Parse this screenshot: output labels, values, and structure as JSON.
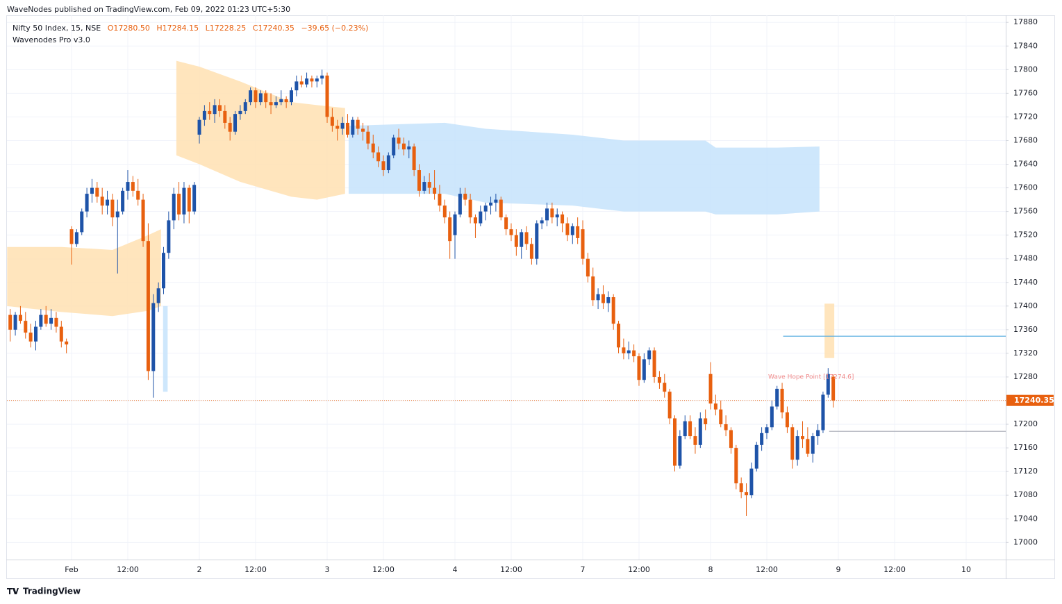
{
  "header": {
    "publisher": "WaveNodes published on TradingView.com, Feb 09, 2022 01:23 UTC+5:30",
    "symbol": "Nifty 50 Index, 15, NSE",
    "open": "O17280.50",
    "high": "H17284.15",
    "low": "L17228.25",
    "close": "C17240.35",
    "change": "−39.65 (−0.23%)",
    "indicator": "Wavenodes Pro v3.0"
  },
  "footer": "TradingView",
  "chart_data": {
    "type": "candlestick",
    "up_color": "#1e53a8",
    "down_color": "#e8600f",
    "grid": true,
    "ylim": [
      16971,
      17892
    ],
    "yticks": [
      17000,
      17040,
      17080,
      17120,
      17160,
      17200,
      17240,
      17280,
      17320,
      17360,
      17400,
      17440,
      17480,
      17520,
      17560,
      17600,
      17640,
      17680,
      17720,
      17760,
      17800,
      17840,
      17880
    ],
    "categories": [
      null,
      null,
      null,
      null,
      null,
      null,
      null,
      null,
      null,
      null,
      null,
      null,
      "Feb",
      null,
      null,
      null,
      null,
      null,
      null,
      null,
      null,
      null,
      null,
      "12:00",
      null,
      null,
      null,
      null,
      null,
      null,
      null,
      null,
      null,
      null,
      null,
      null,
      null,
      "2",
      null,
      null,
      null,
      null,
      null,
      null,
      null,
      null,
      null,
      null,
      "12:00",
      null,
      null,
      null,
      null,
      null,
      null,
      null,
      null,
      null,
      null,
      null,
      null,
      null,
      "3",
      null,
      null,
      null,
      null,
      null,
      null,
      null,
      null,
      null,
      null,
      "12:00",
      null,
      null,
      null,
      null,
      null,
      null,
      null,
      null,
      null,
      null,
      null,
      null,
      null,
      "4",
      null,
      null,
      null,
      null,
      null,
      null,
      null,
      null,
      null,
      null,
      "12:00",
      null,
      null,
      null,
      null,
      null,
      null,
      null,
      null,
      null,
      null,
      null,
      null,
      null,
      "7",
      null,
      null,
      null,
      null,
      null,
      null,
      null,
      null,
      null,
      null,
      "12:00",
      null,
      null,
      null,
      null,
      null,
      null,
      null,
      null,
      null,
      null,
      null,
      null,
      null,
      "8",
      null,
      null,
      null,
      null,
      null,
      null,
      null,
      null,
      null,
      null,
      "12:00",
      null,
      null,
      null,
      null,
      null,
      null,
      null,
      null,
      null,
      null,
      null,
      null,
      null,
      "9",
      null,
      null,
      null,
      null,
      null,
      null,
      null,
      null,
      null,
      null,
      "12:00",
      null,
      null,
      null,
      null,
      null,
      null,
      null,
      null,
      null,
      null,
      null,
      null,
      null,
      "10",
      null,
      null,
      null,
      null,
      null,
      null,
      null
    ],
    "ohlc": [
      [
        17385,
        17395,
        17340,
        17360
      ],
      [
        17360,
        17390,
        17350,
        17385
      ],
      [
        17385,
        17400,
        17370,
        17375
      ],
      [
        17375,
        17390,
        17345,
        17355
      ],
      [
        17355,
        17370,
        17330,
        17340
      ],
      [
        17340,
        17375,
        17325,
        17365
      ],
      [
        17365,
        17395,
        17360,
        17385
      ],
      [
        17385,
        17400,
        17365,
        17370
      ],
      [
        17370,
        17395,
        17360,
        17380
      ],
      [
        17380,
        17390,
        17355,
        17365
      ],
      [
        17365,
        17375,
        17330,
        17340
      ],
      [
        17340,
        17345,
        17320,
        17335
      ],
      [
        17530,
        17535,
        17470,
        17505
      ],
      [
        17505,
        17530,
        17500,
        17525
      ],
      [
        17525,
        17565,
        17520,
        17560
      ],
      [
        17560,
        17600,
        17550,
        17590
      ],
      [
        17590,
        17615,
        17575,
        17600
      ],
      [
        17600,
        17610,
        17575,
        17585
      ],
      [
        17585,
        17600,
        17555,
        17570
      ],
      [
        17570,
        17595,
        17555,
        17580
      ],
      [
        17580,
        17590,
        17535,
        17550
      ],
      [
        17550,
        17580,
        17455,
        17560
      ],
      [
        17560,
        17600,
        17555,
        17595
      ],
      [
        17595,
        17630,
        17580,
        17610
      ],
      [
        17610,
        17620,
        17585,
        17595
      ],
      [
        17595,
        17615,
        17570,
        17580
      ],
      [
        17580,
        17590,
        17500,
        17510
      ],
      [
        17510,
        17540,
        17275,
        17290
      ],
      [
        17290,
        17420,
        17245,
        17405
      ],
      [
        17405,
        17440,
        17390,
        17430
      ],
      [
        17430,
        17500,
        17420,
        17490
      ],
      [
        17490,
        17560,
        17480,
        17545
      ],
      [
        17545,
        17600,
        17530,
        17590
      ],
      [
        17590,
        17610,
        17545,
        17555
      ],
      [
        17555,
        17610,
        17540,
        17600
      ],
      [
        17600,
        17605,
        17540,
        17560
      ],
      [
        17560,
        17610,
        17555,
        17605
      ],
      [
        17690,
        17720,
        17675,
        17715
      ],
      [
        17715,
        17740,
        17705,
        17730
      ],
      [
        17730,
        17745,
        17715,
        17725
      ],
      [
        17725,
        17750,
        17710,
        17740
      ],
      [
        17740,
        17750,
        17720,
        17730
      ],
      [
        17730,
        17740,
        17700,
        17710
      ],
      [
        17710,
        17720,
        17680,
        17695
      ],
      [
        17695,
        17730,
        17690,
        17725
      ],
      [
        17725,
        17740,
        17715,
        17730
      ],
      [
        17730,
        17750,
        17725,
        17745
      ],
      [
        17745,
        17770,
        17740,
        17765
      ],
      [
        17765,
        17770,
        17735,
        17745
      ],
      [
        17745,
        17765,
        17740,
        17760
      ],
      [
        17760,
        17765,
        17735,
        17745
      ],
      [
        17745,
        17760,
        17725,
        17740
      ],
      [
        17740,
        17755,
        17735,
        17745
      ],
      [
        17745,
        17765,
        17740,
        17750
      ],
      [
        17750,
        17755,
        17735,
        17745
      ],
      [
        17745,
        17770,
        17740,
        17765
      ],
      [
        17765,
        17790,
        17755,
        17780
      ],
      [
        17780,
        17790,
        17770,
        17775
      ],
      [
        17775,
        17795,
        17770,
        17785
      ],
      [
        17785,
        17790,
        17770,
        17780
      ],
      [
        17780,
        17790,
        17770,
        17785
      ],
      [
        17785,
        17800,
        17775,
        17790
      ],
      [
        17790,
        17795,
        17710,
        17720
      ],
      [
        17720,
        17735,
        17695,
        17705
      ],
      [
        17705,
        17715,
        17680,
        17700
      ],
      [
        17700,
        17720,
        17690,
        17710
      ],
      [
        17710,
        17725,
        17685,
        17690
      ],
      [
        17690,
        17720,
        17685,
        17715
      ],
      [
        17715,
        17720,
        17690,
        17700
      ],
      [
        17700,
        17710,
        17680,
        17695
      ],
      [
        17695,
        17705,
        17665,
        17675
      ],
      [
        17675,
        17690,
        17650,
        17660
      ],
      [
        17660,
        17670,
        17635,
        17645
      ],
      [
        17645,
        17655,
        17620,
        17630
      ],
      [
        17630,
        17660,
        17625,
        17655
      ],
      [
        17655,
        17690,
        17650,
        17685
      ],
      [
        17685,
        17700,
        17665,
        17675
      ],
      [
        17675,
        17685,
        17655,
        17665
      ],
      [
        17665,
        17680,
        17650,
        17670
      ],
      [
        17670,
        17675,
        17620,
        17630
      ],
      [
        17630,
        17640,
        17585,
        17595
      ],
      [
        17595,
        17620,
        17590,
        17610
      ],
      [
        17610,
        17625,
        17590,
        17600
      ],
      [
        17600,
        17630,
        17580,
        17590
      ],
      [
        17590,
        17605,
        17560,
        17570
      ],
      [
        17570,
        17580,
        17540,
        17550
      ],
      [
        17550,
        17560,
        17480,
        17510
      ],
      [
        17520,
        17560,
        17480,
        17555
      ],
      [
        17555,
        17600,
        17550,
        17590
      ],
      [
        17590,
        17600,
        17570,
        17580
      ],
      [
        17580,
        17590,
        17540,
        17550
      ],
      [
        17550,
        17555,
        17515,
        17540
      ],
      [
        17540,
        17570,
        17535,
        17560
      ],
      [
        17560,
        17575,
        17545,
        17570
      ],
      [
        17570,
        17585,
        17555,
        17575
      ],
      [
        17575,
        17590,
        17560,
        17580
      ],
      [
        17580,
        17585,
        17545,
        17550
      ],
      [
        17550,
        17555,
        17520,
        17530
      ],
      [
        17530,
        17540,
        17510,
        17520
      ],
      [
        17520,
        17530,
        17485,
        17500
      ],
      [
        17500,
        17530,
        17480,
        17525
      ],
      [
        17525,
        17535,
        17495,
        17505
      ],
      [
        17505,
        17515,
        17470,
        17480
      ],
      [
        17480,
        17545,
        17470,
        17540
      ],
      [
        17540,
        17550,
        17530,
        17545
      ],
      [
        17545,
        17575,
        17535,
        17565
      ],
      [
        17565,
        17575,
        17540,
        17550
      ],
      [
        17550,
        17565,
        17535,
        17555
      ],
      [
        17555,
        17560,
        17525,
        17540
      ],
      [
        17540,
        17550,
        17510,
        17520
      ],
      [
        17520,
        17540,
        17505,
        17535
      ],
      [
        17535,
        17550,
        17505,
        17515
      ],
      [
        17530,
        17545,
        17470,
        17480
      ],
      [
        17480,
        17490,
        17440,
        17450
      ],
      [
        17450,
        17465,
        17400,
        17410
      ],
      [
        17410,
        17430,
        17395,
        17420
      ],
      [
        17420,
        17435,
        17395,
        17405
      ],
      [
        17405,
        17425,
        17390,
        17415
      ],
      [
        17415,
        17420,
        17360,
        17370
      ],
      [
        17370,
        17375,
        17320,
        17330
      ],
      [
        17330,
        17345,
        17310,
        17320
      ],
      [
        17320,
        17340,
        17310,
        17325
      ],
      [
        17325,
        17335,
        17305,
        17315
      ],
      [
        17315,
        17320,
        17265,
        17275
      ],
      [
        17275,
        17320,
        17270,
        17310
      ],
      [
        17310,
        17330,
        17300,
        17325
      ],
      [
        17325,
        17330,
        17270,
        17280
      ],
      [
        17280,
        17290,
        17260,
        17270
      ],
      [
        17270,
        17285,
        17245,
        17255
      ],
      [
        17255,
        17260,
        17200,
        17210
      ],
      [
        17210,
        17215,
        17120,
        17130
      ],
      [
        17130,
        17190,
        17125,
        17180
      ],
      [
        17180,
        17215,
        17175,
        17205
      ],
      [
        17205,
        17215,
        17175,
        17180
      ],
      [
        17180,
        17195,
        17150,
        17165
      ],
      [
        17165,
        17220,
        17160,
        17210
      ],
      [
        17210,
        17225,
        17190,
        17200
      ],
      [
        17285,
        17305,
        17225,
        17235
      ],
      [
        17235,
        17250,
        17215,
        17225
      ],
      [
        17225,
        17240,
        17195,
        17200
      ],
      [
        17200,
        17215,
        17180,
        17190
      ],
      [
        17190,
        17195,
        17150,
        17160
      ],
      [
        17160,
        17165,
        17090,
        17100
      ],
      [
        17100,
        17110,
        17075,
        17085
      ],
      [
        17085,
        17100,
        17045,
        17080
      ],
      [
        17080,
        17135,
        17075,
        17125
      ],
      [
        17125,
        17170,
        17120,
        17165
      ],
      [
        17165,
        17195,
        17155,
        17185
      ],
      [
        17185,
        17200,
        17175,
        17195
      ],
      [
        17195,
        17240,
        17190,
        17230
      ],
      [
        17230,
        17265,
        17225,
        17260
      ],
      [
        17260,
        17270,
        17210,
        17220
      ],
      [
        17220,
        17230,
        17185,
        17195
      ],
      [
        17195,
        17200,
        17125,
        17140
      ],
      [
        17140,
        17190,
        17130,
        17180
      ],
      [
        17180,
        17205,
        17160,
        17175
      ],
      [
        17175,
        17195,
        17145,
        17150
      ],
      [
        17150,
        17185,
        17135,
        17180
      ],
      [
        17180,
        17200,
        17165,
        17190
      ],
      [
        17190,
        17255,
        17185,
        17250
      ],
      [
        17250,
        17295,
        17245,
        17285
      ],
      [
        17280.5,
        17284.15,
        17228.25,
        17240.35
      ],
      null,
      null,
      null,
      null,
      null,
      null,
      null,
      null,
      null,
      null,
      null,
      null,
      null,
      null,
      null,
      null,
      null,
      null,
      null,
      null,
      null,
      null,
      null,
      null,
      null,
      null,
      null,
      null,
      null,
      null,
      null,
      null,
      null
    ],
    "zones": [
      {
        "color": "#ffe0b2",
        "points": [
          [
            -0.6,
            17500,
            17400
          ],
          [
            10,
            17500,
            17390
          ],
          [
            20,
            17495,
            17383
          ],
          [
            27,
            17520,
            17392
          ],
          [
            29.5,
            17530,
            17400
          ]
        ]
      },
      {
        "color": "#ffe0b2",
        "points": [
          [
            32.5,
            17815,
            17655
          ],
          [
            37,
            17805,
            17640
          ],
          [
            45,
            17780,
            17610
          ],
          [
            55,
            17745,
            17585
          ],
          [
            60,
            17740,
            17580
          ],
          [
            65.5,
            17735,
            17590
          ]
        ]
      },
      {
        "color": "#c5e3fb",
        "points": [
          [
            66.2,
            17705,
            17590
          ],
          [
            85,
            17710,
            17590
          ],
          [
            93,
            17700,
            17575
          ],
          [
            110,
            17690,
            17570
          ],
          [
            120,
            17680,
            17560
          ],
          [
            136,
            17680,
            17560
          ],
          [
            138,
            17668,
            17555
          ],
          [
            150,
            17668,
            17555
          ],
          [
            158.3,
            17670,
            17560
          ]
        ]
      },
      {
        "color": "#c5e3fb",
        "points": [
          [
            29.9,
            17400,
            17255
          ],
          [
            30.8,
            17400,
            17255
          ]
        ]
      },
      {
        "color": "#ffe0b2",
        "points": [
          [
            159.3,
            17404,
            17312
          ],
          [
            161.2,
            17404,
            17312
          ]
        ]
      }
    ],
    "levels": [
      {
        "value": 17349,
        "from": 151.2,
        "color": "#5aaee0"
      },
      {
        "value": 17188,
        "from": 160.2,
        "color": "#b2b5be"
      }
    ],
    "last_price": 17240.35,
    "annotation": "Wave Hope Point [17274.6]"
  }
}
